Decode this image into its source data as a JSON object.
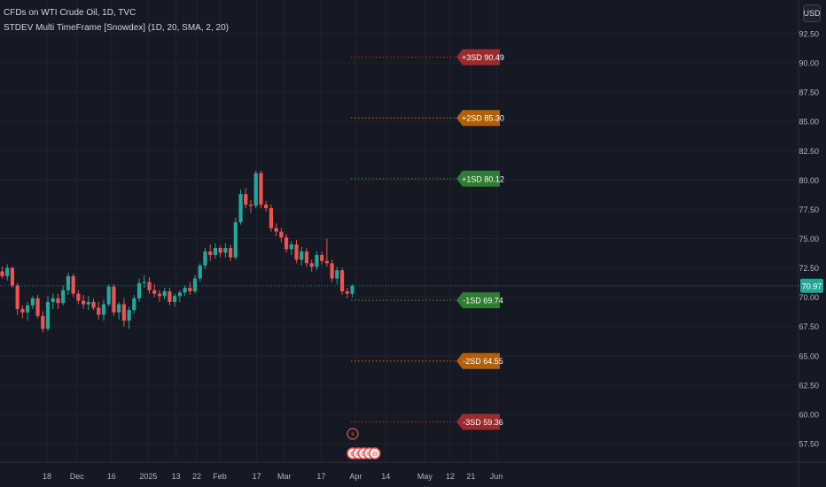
{
  "header": {
    "line1": "CFDs on WTI Crude Oil, 1D, TVC",
    "line2": "STDEV Multi TimeFrame [Snowdex] (1D, 20, SMA, 2, 20)"
  },
  "currency_button": "USD",
  "colors": {
    "background": "#151924",
    "grid": "#1f2330",
    "up": "#26a69a",
    "down": "#ef5350",
    "sd1": "#2e7d32",
    "sd2": "#b45f06",
    "sd3": "#9c2b2e",
    "axis_text": "#b2b5be",
    "last_price": "#26a69a"
  },
  "chart_data": {
    "type": "candlestick",
    "title": "CFDs on WTI Crude Oil, 1D, TVC",
    "indicator": "STDEV Multi TimeFrame [Snowdex] (1D, 20, SMA, 2, 20)",
    "currency": "USD",
    "ylim": [
      55.5,
      95.0
    ],
    "y_ticks": [
      "57.50",
      "60.00",
      "62.50",
      "65.00",
      "67.50",
      "70.00",
      "72.50",
      "75.00",
      "77.50",
      "80.00",
      "82.50",
      "85.00",
      "87.50",
      "90.00",
      "92.50"
    ],
    "x_ticks": [
      {
        "label": "18",
        "date": "2024-11-18"
      },
      {
        "label": "Dec",
        "date": "2024-12-01"
      },
      {
        "label": "16",
        "date": "2024-12-16"
      },
      {
        "label": "2025",
        "date": "2025-01-01"
      },
      {
        "label": "13",
        "date": "2025-01-13"
      },
      {
        "label": "22",
        "date": "2025-01-22"
      },
      {
        "label": "Feb",
        "date": "2025-02-01"
      },
      {
        "label": "17",
        "date": "2025-02-17"
      },
      {
        "label": "Mar",
        "date": "2025-03-01"
      },
      {
        "label": "17",
        "date": "2025-03-17"
      },
      {
        "label": "Apr",
        "date": "2025-04-01"
      },
      {
        "label": "14",
        "date": "2025-04-14"
      },
      {
        "label": "May",
        "date": "2025-05-01"
      },
      {
        "label": "12",
        "date": "2025-05-12"
      },
      {
        "label": "21",
        "date": "2025-05-21"
      },
      {
        "label": "Jun",
        "date": "2025-06-01"
      }
    ],
    "candles": [
      [
        72.2,
        72.6,
        71.6,
        71.8
      ],
      [
        71.8,
        72.8,
        71.4,
        72.5
      ],
      [
        72.5,
        72.6,
        70.8,
        71.0
      ],
      [
        71.0,
        71.2,
        68.5,
        69.0
      ],
      [
        69.0,
        69.3,
        68.2,
        68.7
      ],
      [
        68.7,
        69.6,
        68.0,
        69.3
      ],
      [
        69.3,
        70.1,
        69.0,
        69.9
      ],
      [
        69.9,
        70.2,
        68.2,
        68.4
      ],
      [
        68.4,
        68.8,
        67.0,
        67.3
      ],
      [
        67.3,
        70.1,
        67.1,
        69.6
      ],
      [
        69.6,
        70.3,
        69.0,
        69.9
      ],
      [
        69.9,
        70.3,
        69.0,
        69.5
      ],
      [
        69.5,
        71.0,
        69.3,
        70.6
      ],
      [
        70.6,
        72.1,
        70.2,
        71.8
      ],
      [
        71.8,
        72.0,
        70.0,
        70.3
      ],
      [
        70.3,
        70.6,
        69.4,
        69.7
      ],
      [
        69.7,
        70.2,
        69.0,
        69.4
      ],
      [
        69.4,
        70.1,
        68.9,
        69.6
      ],
      [
        69.6,
        69.9,
        68.9,
        69.1
      ],
      [
        69.1,
        69.6,
        68.1,
        68.5
      ],
      [
        68.5,
        69.8,
        68.0,
        69.4
      ],
      [
        69.4,
        71.1,
        69.2,
        70.9
      ],
      [
        70.9,
        71.1,
        68.4,
        68.7
      ],
      [
        68.7,
        69.6,
        68.1,
        69.4
      ],
      [
        69.4,
        69.9,
        67.5,
        68.0
      ],
      [
        68.0,
        69.2,
        67.3,
        68.9
      ],
      [
        68.9,
        70.2,
        68.6,
        69.9
      ],
      [
        69.9,
        71.6,
        69.6,
        71.2
      ],
      [
        71.2,
        71.9,
        70.8,
        71.3
      ],
      [
        71.3,
        71.7,
        70.3,
        70.6
      ],
      [
        70.6,
        71.1,
        70.0,
        70.3
      ],
      [
        70.3,
        70.6,
        69.6,
        70.1
      ],
      [
        70.1,
        70.8,
        69.8,
        70.5
      ],
      [
        70.5,
        70.8,
        69.3,
        69.6
      ],
      [
        69.6,
        70.3,
        69.2,
        70.1
      ],
      [
        70.1,
        70.6,
        69.6,
        70.4
      ],
      [
        70.4,
        71.0,
        70.1,
        70.8
      ],
      [
        70.8,
        71.3,
        70.2,
        70.5
      ],
      [
        70.5,
        71.9,
        70.3,
        71.6
      ],
      [
        71.6,
        72.9,
        71.3,
        72.7
      ],
      [
        72.7,
        74.2,
        72.4,
        73.9
      ],
      [
        73.9,
        74.5,
        73.1,
        73.6
      ],
      [
        73.6,
        74.6,
        73.3,
        74.2
      ],
      [
        74.2,
        74.4,
        73.4,
        73.8
      ],
      [
        73.8,
        74.6,
        73.4,
        74.2
      ],
      [
        74.2,
        74.5,
        73.1,
        73.4
      ],
      [
        73.4,
        76.8,
        73.2,
        76.4
      ],
      [
        76.4,
        79.2,
        76.2,
        78.8
      ],
      [
        78.8,
        79.3,
        77.6,
        77.9
      ],
      [
        77.9,
        78.3,
        77.2,
        77.8
      ],
      [
        77.8,
        80.8,
        77.6,
        80.6
      ],
      [
        80.6,
        80.8,
        77.6,
        77.9
      ],
      [
        77.9,
        78.2,
        77.3,
        77.6
      ],
      [
        77.6,
        77.9,
        75.6,
        75.9
      ],
      [
        75.9,
        76.3,
        75.2,
        75.6
      ],
      [
        75.6,
        75.9,
        74.7,
        75.1
      ],
      [
        75.1,
        75.4,
        73.8,
        74.1
      ],
      [
        74.1,
        74.8,
        73.6,
        74.5
      ],
      [
        74.5,
        74.9,
        72.9,
        73.2
      ],
      [
        73.2,
        74.3,
        72.7,
        73.9
      ],
      [
        73.9,
        74.2,
        72.6,
        72.9
      ],
      [
        72.9,
        73.2,
        72.2,
        72.6
      ],
      [
        72.6,
        73.9,
        72.3,
        73.6
      ],
      [
        73.6,
        73.9,
        72.8,
        73.1
      ],
      [
        73.1,
        75.0,
        72.6,
        72.9
      ],
      [
        72.9,
        73.2,
        71.3,
        71.6
      ],
      [
        71.6,
        72.6,
        71.1,
        72.3
      ],
      [
        72.3,
        72.5,
        70.2,
        70.5
      ],
      [
        70.5,
        70.8,
        69.9,
        70.3
      ],
      [
        70.3,
        71.1,
        70.0,
        70.97
      ]
    ],
    "last_price": "70.97",
    "levels": [
      {
        "label": "+3SD 90.49",
        "value": 90.49,
        "band": "sd3"
      },
      {
        "label": "+2SD 85.30",
        "value": 85.3,
        "band": "sd2"
      },
      {
        "label": "+1SD 80.12",
        "value": 80.12,
        "band": "sd1"
      },
      {
        "label": "-1SD 69.74",
        "value": 69.74,
        "band": "sd1"
      },
      {
        "label": "-2SD 64.55",
        "value": 64.55,
        "band": "sd2"
      },
      {
        "label": "-3SD 59.36",
        "value": 59.36,
        "band": "sd3"
      }
    ],
    "event_markers": [
      "⚡",
      "⊖",
      "⊖",
      "⊖",
      "⊖",
      "⊖"
    ]
  }
}
